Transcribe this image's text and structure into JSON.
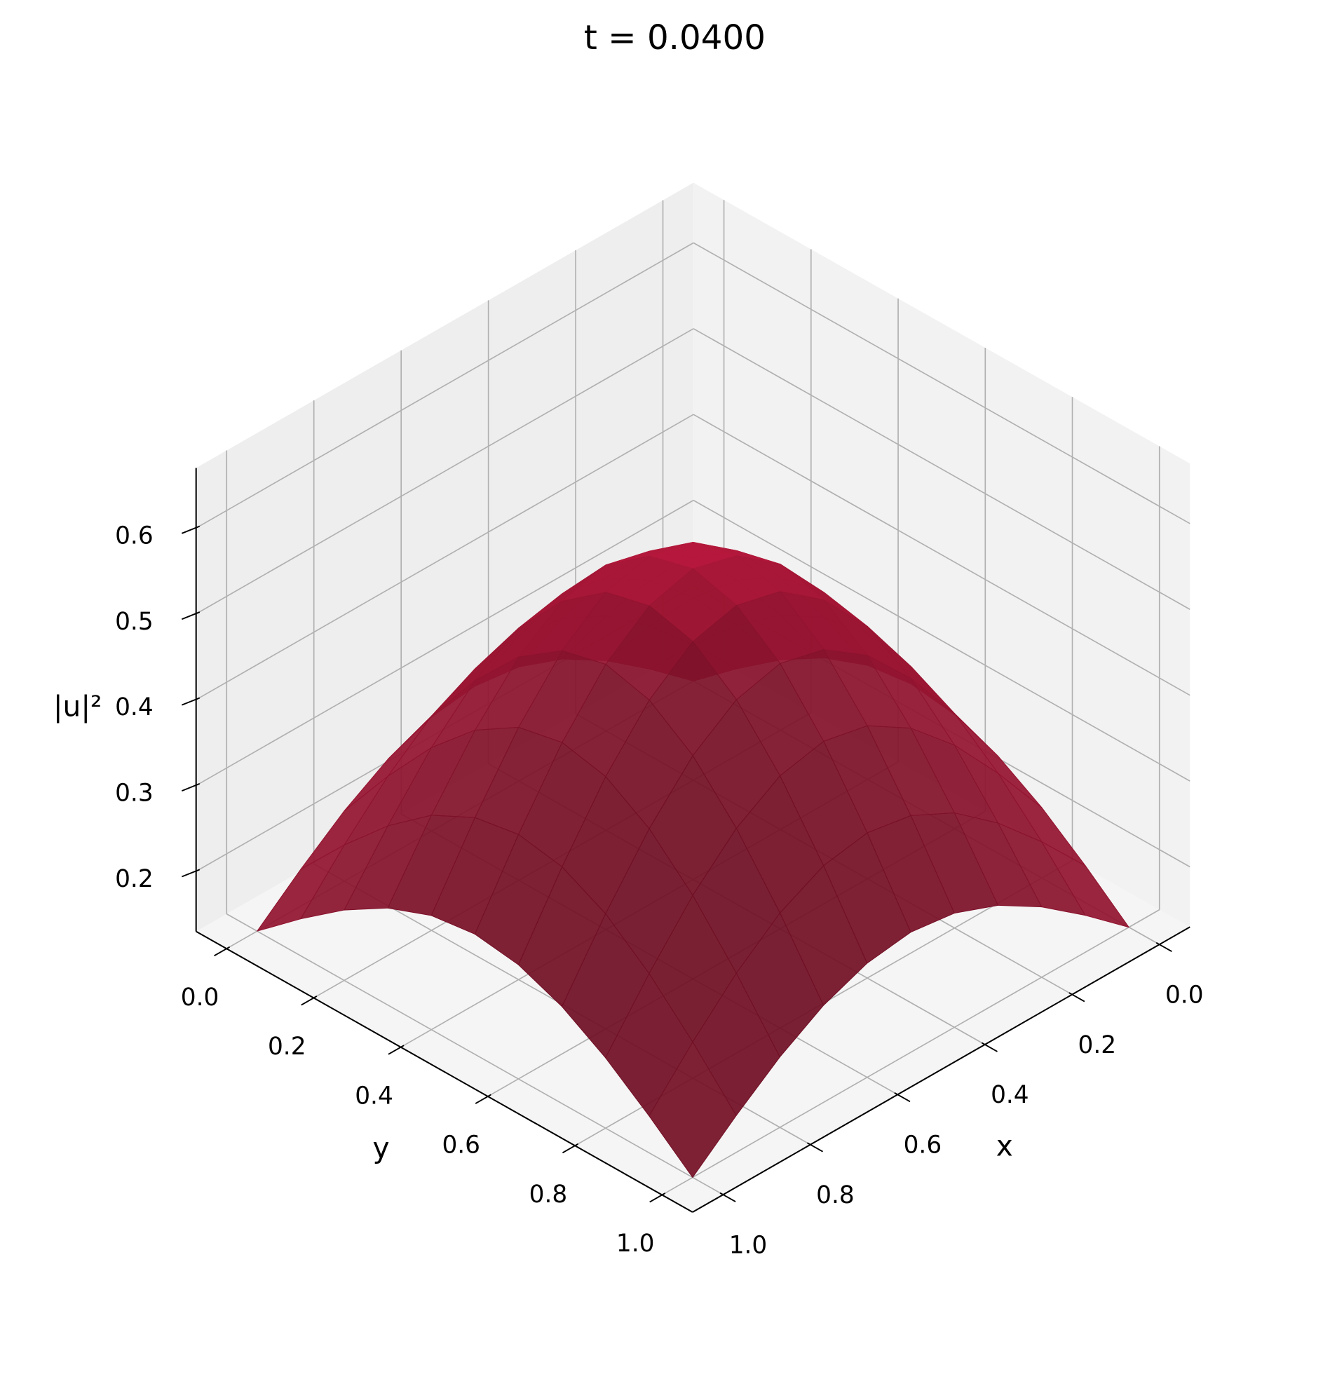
{
  "chart_data": {
    "type": "surface",
    "title": "t = 0.0400",
    "xlabel": "x",
    "ylabel": "y",
    "zlabel": "|u|²",
    "color": "#b2183a",
    "x": [
      0,
      0.1,
      0.2,
      0.3,
      0.4,
      0.5,
      0.6,
      0.7,
      0.8,
      0.9,
      1
    ],
    "y": [
      0,
      0.1,
      0.2,
      0.3,
      0.4,
      0.5,
      0.6,
      0.7,
      0.8,
      0.9,
      1
    ],
    "z": [
      [
        0.13,
        0.173,
        0.212,
        0.243,
        0.263,
        0.27,
        0.263,
        0.243,
        0.212,
        0.173,
        0.13
      ],
      [
        0.173,
        0.23,
        0.281,
        0.322,
        0.348,
        0.357,
        0.348,
        0.322,
        0.281,
        0.23,
        0.173
      ],
      [
        0.212,
        0.281,
        0.343,
        0.392,
        0.424,
        0.435,
        0.424,
        0.392,
        0.343,
        0.281,
        0.212
      ],
      [
        0.243,
        0.322,
        0.392,
        0.448,
        0.484,
        0.497,
        0.484,
        0.448,
        0.392,
        0.322,
        0.243
      ],
      [
        0.263,
        0.348,
        0.424,
        0.484,
        0.523,
        0.536,
        0.523,
        0.484,
        0.424,
        0.348,
        0.263
      ],
      [
        0.27,
        0.357,
        0.435,
        0.497,
        0.536,
        0.55,
        0.536,
        0.497,
        0.435,
        0.357,
        0.27
      ],
      [
        0.263,
        0.348,
        0.424,
        0.484,
        0.523,
        0.536,
        0.523,
        0.484,
        0.424,
        0.348,
        0.263
      ],
      [
        0.243,
        0.322,
        0.392,
        0.448,
        0.484,
        0.497,
        0.484,
        0.448,
        0.392,
        0.322,
        0.243
      ],
      [
        0.212,
        0.281,
        0.343,
        0.392,
        0.424,
        0.435,
        0.424,
        0.392,
        0.343,
        0.281,
        0.212
      ],
      [
        0.173,
        0.23,
        0.281,
        0.322,
        0.348,
        0.357,
        0.348,
        0.322,
        0.281,
        0.23,
        0.173
      ],
      [
        0.13,
        0.173,
        0.212,
        0.243,
        0.263,
        0.27,
        0.263,
        0.243,
        0.212,
        0.173,
        0.13
      ]
    ],
    "xlim": [
      -0.07,
      1.07
    ],
    "ylim": [
      -0.07,
      1.07
    ],
    "zlim": [
      0.13,
      0.67
    ],
    "xticks": [
      {
        "value": 0,
        "label": "0.0"
      },
      0.2,
      0.4,
      0.6,
      0.8,
      {
        "value": 1,
        "label": "1.0"
      }
    ],
    "yticks": [
      {
        "value": 0,
        "label": "0.0"
      },
      0.2,
      0.4,
      0.6,
      0.8,
      {
        "value": 1,
        "label": "1.0"
      }
    ],
    "zticks": [
      0.2,
      0.3,
      0.4,
      0.5,
      0.6
    ],
    "grid": true
  }
}
